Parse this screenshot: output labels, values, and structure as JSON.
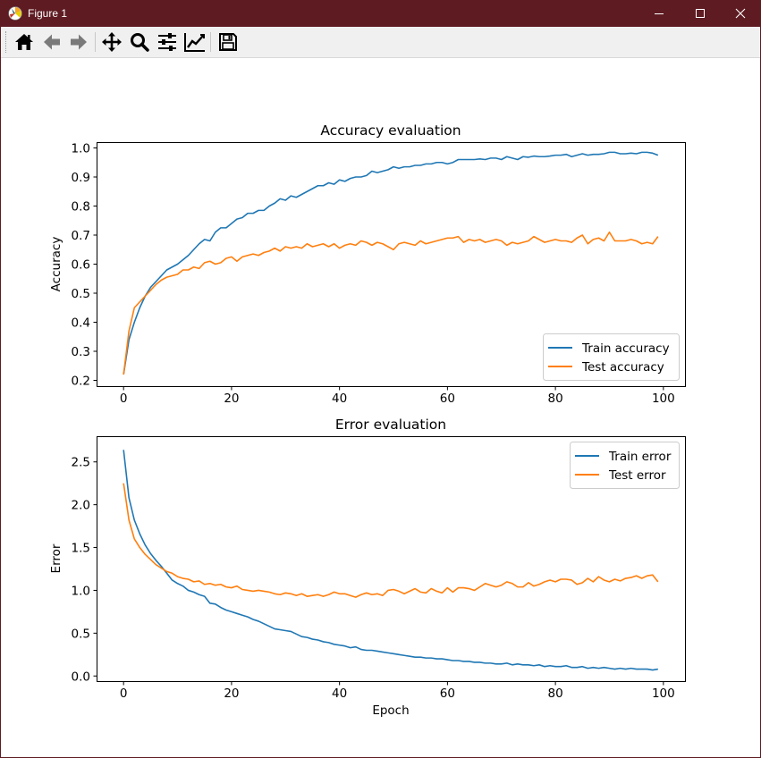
{
  "window": {
    "title": "Figure 1",
    "title_bar_color": "#5e1b22"
  },
  "toolbar": {
    "buttons": [
      {
        "name": "home",
        "icon": "home-icon"
      },
      {
        "name": "back",
        "icon": "back-arrow-icon"
      },
      {
        "name": "forward",
        "icon": "forward-arrow-icon"
      },
      {
        "name": "pan",
        "icon": "pan-move-icon"
      },
      {
        "name": "zoom",
        "icon": "zoom-magnifier-icon"
      },
      {
        "name": "configure-subplots",
        "icon": "sliders-icon"
      },
      {
        "name": "edit-axis",
        "icon": "line-chart-icon"
      },
      {
        "name": "save",
        "icon": "floppy-disk-icon"
      }
    ]
  },
  "chart_data": [
    {
      "type": "line",
      "title": "Accuracy evaluation",
      "xlabel": "",
      "ylabel": "Accuracy",
      "xlim": [
        -5,
        104
      ],
      "ylim": [
        0.18,
        1.02
      ],
      "xticks": [
        0,
        20,
        40,
        60,
        80,
        100
      ],
      "yticks": [
        0.2,
        0.3,
        0.4,
        0.5,
        0.6,
        0.7,
        0.8,
        0.9,
        1.0
      ],
      "ytick_labels": [
        "0.2",
        "0.3",
        "0.4",
        "0.5",
        "0.6",
        "0.7",
        "0.8",
        "0.9",
        "1.0"
      ],
      "grid": false,
      "legend_position": "lower-right",
      "x": [
        0,
        1,
        2,
        3,
        4,
        5,
        6,
        7,
        8,
        9,
        10,
        11,
        12,
        13,
        14,
        15,
        16,
        17,
        18,
        19,
        20,
        21,
        22,
        23,
        24,
        25,
        26,
        27,
        28,
        29,
        30,
        31,
        32,
        33,
        34,
        35,
        36,
        37,
        38,
        39,
        40,
        41,
        42,
        43,
        44,
        45,
        46,
        47,
        48,
        49,
        50,
        51,
        52,
        53,
        54,
        55,
        56,
        57,
        58,
        59,
        60,
        61,
        62,
        63,
        64,
        65,
        66,
        67,
        68,
        69,
        70,
        71,
        72,
        73,
        74,
        75,
        76,
        77,
        78,
        79,
        80,
        81,
        82,
        83,
        84,
        85,
        86,
        87,
        88,
        89,
        90,
        91,
        92,
        93,
        94,
        95,
        96,
        97,
        98,
        99
      ],
      "series": [
        {
          "name": "Train accuracy",
          "color": "#1f77b4",
          "values": [
            0.22,
            0.34,
            0.4,
            0.45,
            0.49,
            0.52,
            0.54,
            0.56,
            0.58,
            0.59,
            0.6,
            0.615,
            0.63,
            0.65,
            0.67,
            0.685,
            0.68,
            0.71,
            0.725,
            0.725,
            0.74,
            0.755,
            0.76,
            0.775,
            0.775,
            0.785,
            0.785,
            0.8,
            0.81,
            0.825,
            0.82,
            0.835,
            0.83,
            0.84,
            0.85,
            0.86,
            0.87,
            0.87,
            0.88,
            0.875,
            0.89,
            0.885,
            0.895,
            0.9,
            0.9,
            0.905,
            0.92,
            0.915,
            0.92,
            0.925,
            0.935,
            0.93,
            0.935,
            0.935,
            0.94,
            0.94,
            0.945,
            0.945,
            0.95,
            0.95,
            0.945,
            0.95,
            0.96,
            0.96,
            0.96,
            0.96,
            0.962,
            0.96,
            0.965,
            0.965,
            0.96,
            0.97,
            0.965,
            0.96,
            0.97,
            0.968,
            0.972,
            0.97,
            0.97,
            0.972,
            0.975,
            0.975,
            0.978,
            0.97,
            0.975,
            0.98,
            0.975,
            0.978,
            0.978,
            0.98,
            0.985,
            0.985,
            0.98,
            0.98,
            0.982,
            0.98,
            0.985,
            0.985,
            0.982,
            0.975
          ]
        },
        {
          "name": "Test accuracy",
          "color": "#ff7f0e",
          "values": [
            0.22,
            0.37,
            0.45,
            0.47,
            0.49,
            0.51,
            0.53,
            0.545,
            0.555,
            0.56,
            0.565,
            0.58,
            0.58,
            0.59,
            0.585,
            0.605,
            0.61,
            0.6,
            0.605,
            0.62,
            0.625,
            0.61,
            0.625,
            0.63,
            0.635,
            0.63,
            0.64,
            0.645,
            0.655,
            0.645,
            0.66,
            0.655,
            0.66,
            0.655,
            0.67,
            0.66,
            0.665,
            0.67,
            0.66,
            0.67,
            0.655,
            0.665,
            0.67,
            0.665,
            0.68,
            0.675,
            0.665,
            0.675,
            0.67,
            0.66,
            0.65,
            0.67,
            0.675,
            0.67,
            0.665,
            0.68,
            0.67,
            0.675,
            0.68,
            0.685,
            0.69,
            0.69,
            0.695,
            0.675,
            0.685,
            0.68,
            0.685,
            0.675,
            0.68,
            0.685,
            0.68,
            0.665,
            0.675,
            0.67,
            0.675,
            0.68,
            0.695,
            0.685,
            0.675,
            0.68,
            0.685,
            0.68,
            0.68,
            0.675,
            0.69,
            0.7,
            0.67,
            0.685,
            0.69,
            0.68,
            0.71,
            0.68,
            0.68,
            0.68,
            0.685,
            0.68,
            0.67,
            0.675,
            0.67,
            0.695
          ]
        }
      ]
    },
    {
      "type": "line",
      "title": "Error evaluation",
      "xlabel": "Epoch",
      "ylabel": "Error",
      "xlim": [
        -5,
        104
      ],
      "ylim": [
        -0.06,
        2.8
      ],
      "xticks": [
        0,
        20,
        40,
        60,
        80,
        100
      ],
      "yticks": [
        0.0,
        0.5,
        1.0,
        1.5,
        2.0,
        2.5
      ],
      "ytick_labels": [
        "0.0",
        "0.5",
        "1.0",
        "1.5",
        "2.0",
        "2.5"
      ],
      "grid": false,
      "legend_position": "upper-right",
      "x": [
        0,
        1,
        2,
        3,
        4,
        5,
        6,
        7,
        8,
        9,
        10,
        11,
        12,
        13,
        14,
        15,
        16,
        17,
        18,
        19,
        20,
        21,
        22,
        23,
        24,
        25,
        26,
        27,
        28,
        29,
        30,
        31,
        32,
        33,
        34,
        35,
        36,
        37,
        38,
        39,
        40,
        41,
        42,
        43,
        44,
        45,
        46,
        47,
        48,
        49,
        50,
        51,
        52,
        53,
        54,
        55,
        56,
        57,
        58,
        59,
        60,
        61,
        62,
        63,
        64,
        65,
        66,
        67,
        68,
        69,
        70,
        71,
        72,
        73,
        74,
        75,
        76,
        77,
        78,
        79,
        80,
        81,
        82,
        83,
        84,
        85,
        86,
        87,
        88,
        89,
        90,
        91,
        92,
        93,
        94,
        95,
        96,
        97,
        98,
        99
      ],
      "series": [
        {
          "name": "Train error",
          "color": "#1f77b4",
          "values": [
            2.64,
            2.08,
            1.82,
            1.66,
            1.53,
            1.43,
            1.35,
            1.28,
            1.2,
            1.12,
            1.08,
            1.05,
            1.0,
            0.98,
            0.95,
            0.93,
            0.85,
            0.84,
            0.8,
            0.77,
            0.75,
            0.73,
            0.71,
            0.69,
            0.66,
            0.64,
            0.61,
            0.58,
            0.55,
            0.54,
            0.53,
            0.52,
            0.49,
            0.46,
            0.45,
            0.43,
            0.42,
            0.4,
            0.39,
            0.37,
            0.36,
            0.35,
            0.33,
            0.34,
            0.31,
            0.3,
            0.3,
            0.29,
            0.28,
            0.27,
            0.26,
            0.25,
            0.24,
            0.23,
            0.22,
            0.22,
            0.21,
            0.21,
            0.2,
            0.2,
            0.19,
            0.18,
            0.18,
            0.17,
            0.17,
            0.16,
            0.16,
            0.15,
            0.15,
            0.14,
            0.14,
            0.15,
            0.13,
            0.14,
            0.13,
            0.13,
            0.12,
            0.13,
            0.11,
            0.12,
            0.11,
            0.11,
            0.12,
            0.1,
            0.1,
            0.11,
            0.09,
            0.1,
            0.09,
            0.1,
            0.09,
            0.08,
            0.09,
            0.08,
            0.09,
            0.08,
            0.08,
            0.08,
            0.07,
            0.08
          ]
        },
        {
          "name": "Test error",
          "color": "#ff7f0e",
          "values": [
            2.25,
            1.82,
            1.6,
            1.5,
            1.42,
            1.36,
            1.3,
            1.26,
            1.22,
            1.2,
            1.16,
            1.14,
            1.13,
            1.1,
            1.11,
            1.07,
            1.08,
            1.06,
            1.07,
            1.04,
            1.03,
            1.05,
            1.01,
            1.0,
            0.99,
            1.0,
            0.99,
            0.98,
            0.96,
            0.95,
            0.97,
            0.96,
            0.94,
            0.96,
            0.93,
            0.94,
            0.95,
            0.93,
            0.95,
            0.98,
            0.96,
            0.96,
            0.94,
            0.92,
            0.95,
            0.97,
            0.95,
            0.96,
            0.94,
            1.0,
            1.01,
            0.99,
            0.96,
            0.99,
            1.02,
            0.98,
            0.97,
            1.02,
            0.99,
            0.97,
            1.03,
            0.98,
            1.03,
            1.03,
            1.02,
            1.0,
            1.04,
            1.08,
            1.06,
            1.04,
            1.06,
            1.1,
            1.08,
            1.04,
            1.04,
            1.09,
            1.05,
            1.07,
            1.1,
            1.12,
            1.1,
            1.13,
            1.13,
            1.12,
            1.07,
            1.09,
            1.14,
            1.1,
            1.16,
            1.12,
            1.1,
            1.13,
            1.11,
            1.14,
            1.15,
            1.17,
            1.14,
            1.17,
            1.18,
            1.1
          ]
        }
      ]
    }
  ]
}
